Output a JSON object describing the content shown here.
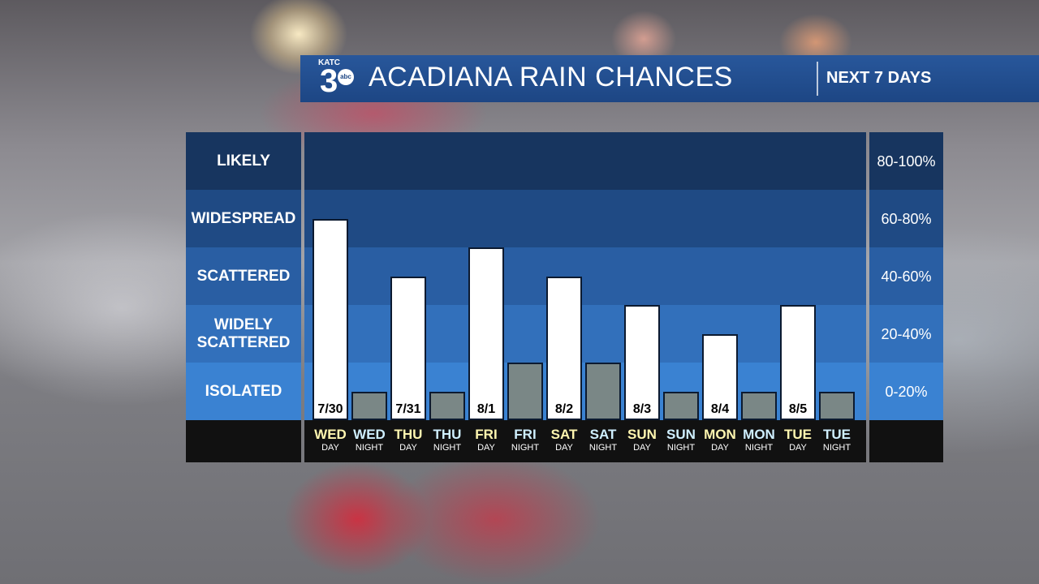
{
  "header": {
    "logo_text": "KATC",
    "logo_number": "3",
    "logo_network": "abc",
    "title": "ACADIANA RAIN CHANCES",
    "subtitle": "NEXT 7 DAYS"
  },
  "colors": {
    "header_bg": "#1d4684",
    "band_likely": "#17355f",
    "band_widespread": "#1f4a84",
    "band_scattered": "#295ea3",
    "band_widely_scattered": "#3270bb",
    "band_isolated": "#3a82d2",
    "day_bar": "#ffffff",
    "night_bar": "#7a8786",
    "day_label": "#fff6b0",
    "night_label": "#cfefff"
  },
  "chart_data": {
    "type": "bar",
    "title": "ACADIANA RAIN CHANCES",
    "ylim": [
      0,
      100
    ],
    "y_bands": [
      {
        "label": "LIKELY",
        "range": "80-100%"
      },
      {
        "label": "WIDESPREAD",
        "range": "60-80%"
      },
      {
        "label": "SCATTERED",
        "range": "40-60%"
      },
      {
        "label": "WIDELY SCATTERED",
        "range": "20-40%"
      },
      {
        "label": "ISOLATED",
        "range": "0-20%"
      }
    ],
    "categories": [
      {
        "day": "WED",
        "period": "DAY",
        "date": "7/30"
      },
      {
        "day": "WED",
        "period": "NIGHT",
        "date": ""
      },
      {
        "day": "THU",
        "period": "DAY",
        "date": "7/31"
      },
      {
        "day": "THU",
        "period": "NIGHT",
        "date": ""
      },
      {
        "day": "FRI",
        "period": "DAY",
        "date": "8/1"
      },
      {
        "day": "FRI",
        "period": "NIGHT",
        "date": ""
      },
      {
        "day": "SAT",
        "period": "DAY",
        "date": "8/2"
      },
      {
        "day": "SAT",
        "period": "NIGHT",
        "date": ""
      },
      {
        "day": "SUN",
        "period": "DAY",
        "date": "8/3"
      },
      {
        "day": "SUN",
        "period": "NIGHT",
        "date": ""
      },
      {
        "day": "MON",
        "period": "DAY",
        "date": "8/4"
      },
      {
        "day": "MON",
        "period": "NIGHT",
        "date": ""
      },
      {
        "day": "TUE",
        "period": "DAY",
        "date": "8/5"
      },
      {
        "day": "TUE",
        "period": "NIGHT",
        "date": ""
      }
    ],
    "values": [
      70,
      10,
      50,
      10,
      60,
      20,
      50,
      20,
      40,
      10,
      30,
      10,
      40,
      10
    ],
    "grid": false,
    "legend": "none"
  }
}
